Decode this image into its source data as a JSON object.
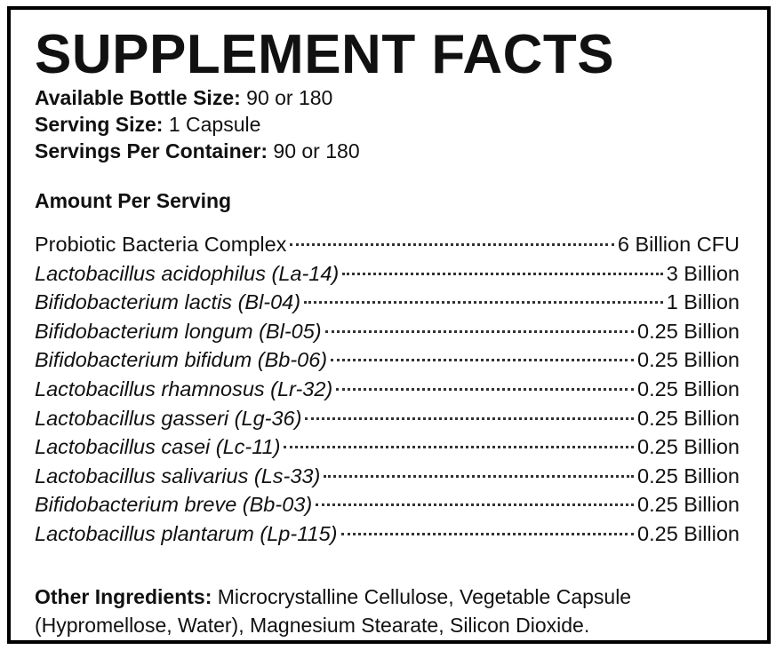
{
  "title": "SUPPLEMENT FACTS",
  "info": [
    {
      "label": "Available Bottle Size:",
      "value": "90 or 180"
    },
    {
      "label": "Serving Size:",
      "value": "1 Capsule"
    },
    {
      "label": "Servings Per Container:",
      "value": "90 or 180"
    }
  ],
  "amount_heading": "Amount Per Serving",
  "rows": [
    {
      "name": "Probiotic Bacteria Complex",
      "amount": "6 Billion CFU"
    },
    {
      "name": "Lactobacillus acidophilus (La-14)",
      "amount": "3 Billion"
    },
    {
      "name": "Bifidobacterium lactis (Bl-04)",
      "amount": "1 Billion"
    },
    {
      "name": "Bifidobacterium longum (Bl-05)",
      "amount": "0.25 Billion"
    },
    {
      "name": "Bifidobacterium bifidum (Bb-06)",
      "amount": "0.25 Billion"
    },
    {
      "name": "Lactobacillus rhamnosus (Lr-32)",
      "amount": "0.25 Billion"
    },
    {
      "name": "Lactobacillus gasseri (Lg-36)",
      "amount": "0.25 Billion"
    },
    {
      "name": "Lactobacillus casei (Lc-11)",
      "amount": "0.25 Billion"
    },
    {
      "name": "Lactobacillus salivarius (Ls-33)",
      "amount": "0.25 Billion"
    },
    {
      "name": "Bifidobacterium breve (Bb-03)",
      "amount": "0.25 Billion"
    },
    {
      "name": "Lactobacillus plantarum (Lp-115)",
      "amount": "0.25 Billion"
    }
  ],
  "other": {
    "label": "Other Ingredients:",
    "text": "Microcrystalline Cellulose, Vegetable Capsule (Hypromellose, Water), Magnesium Stearate, Silicon Dioxide."
  }
}
